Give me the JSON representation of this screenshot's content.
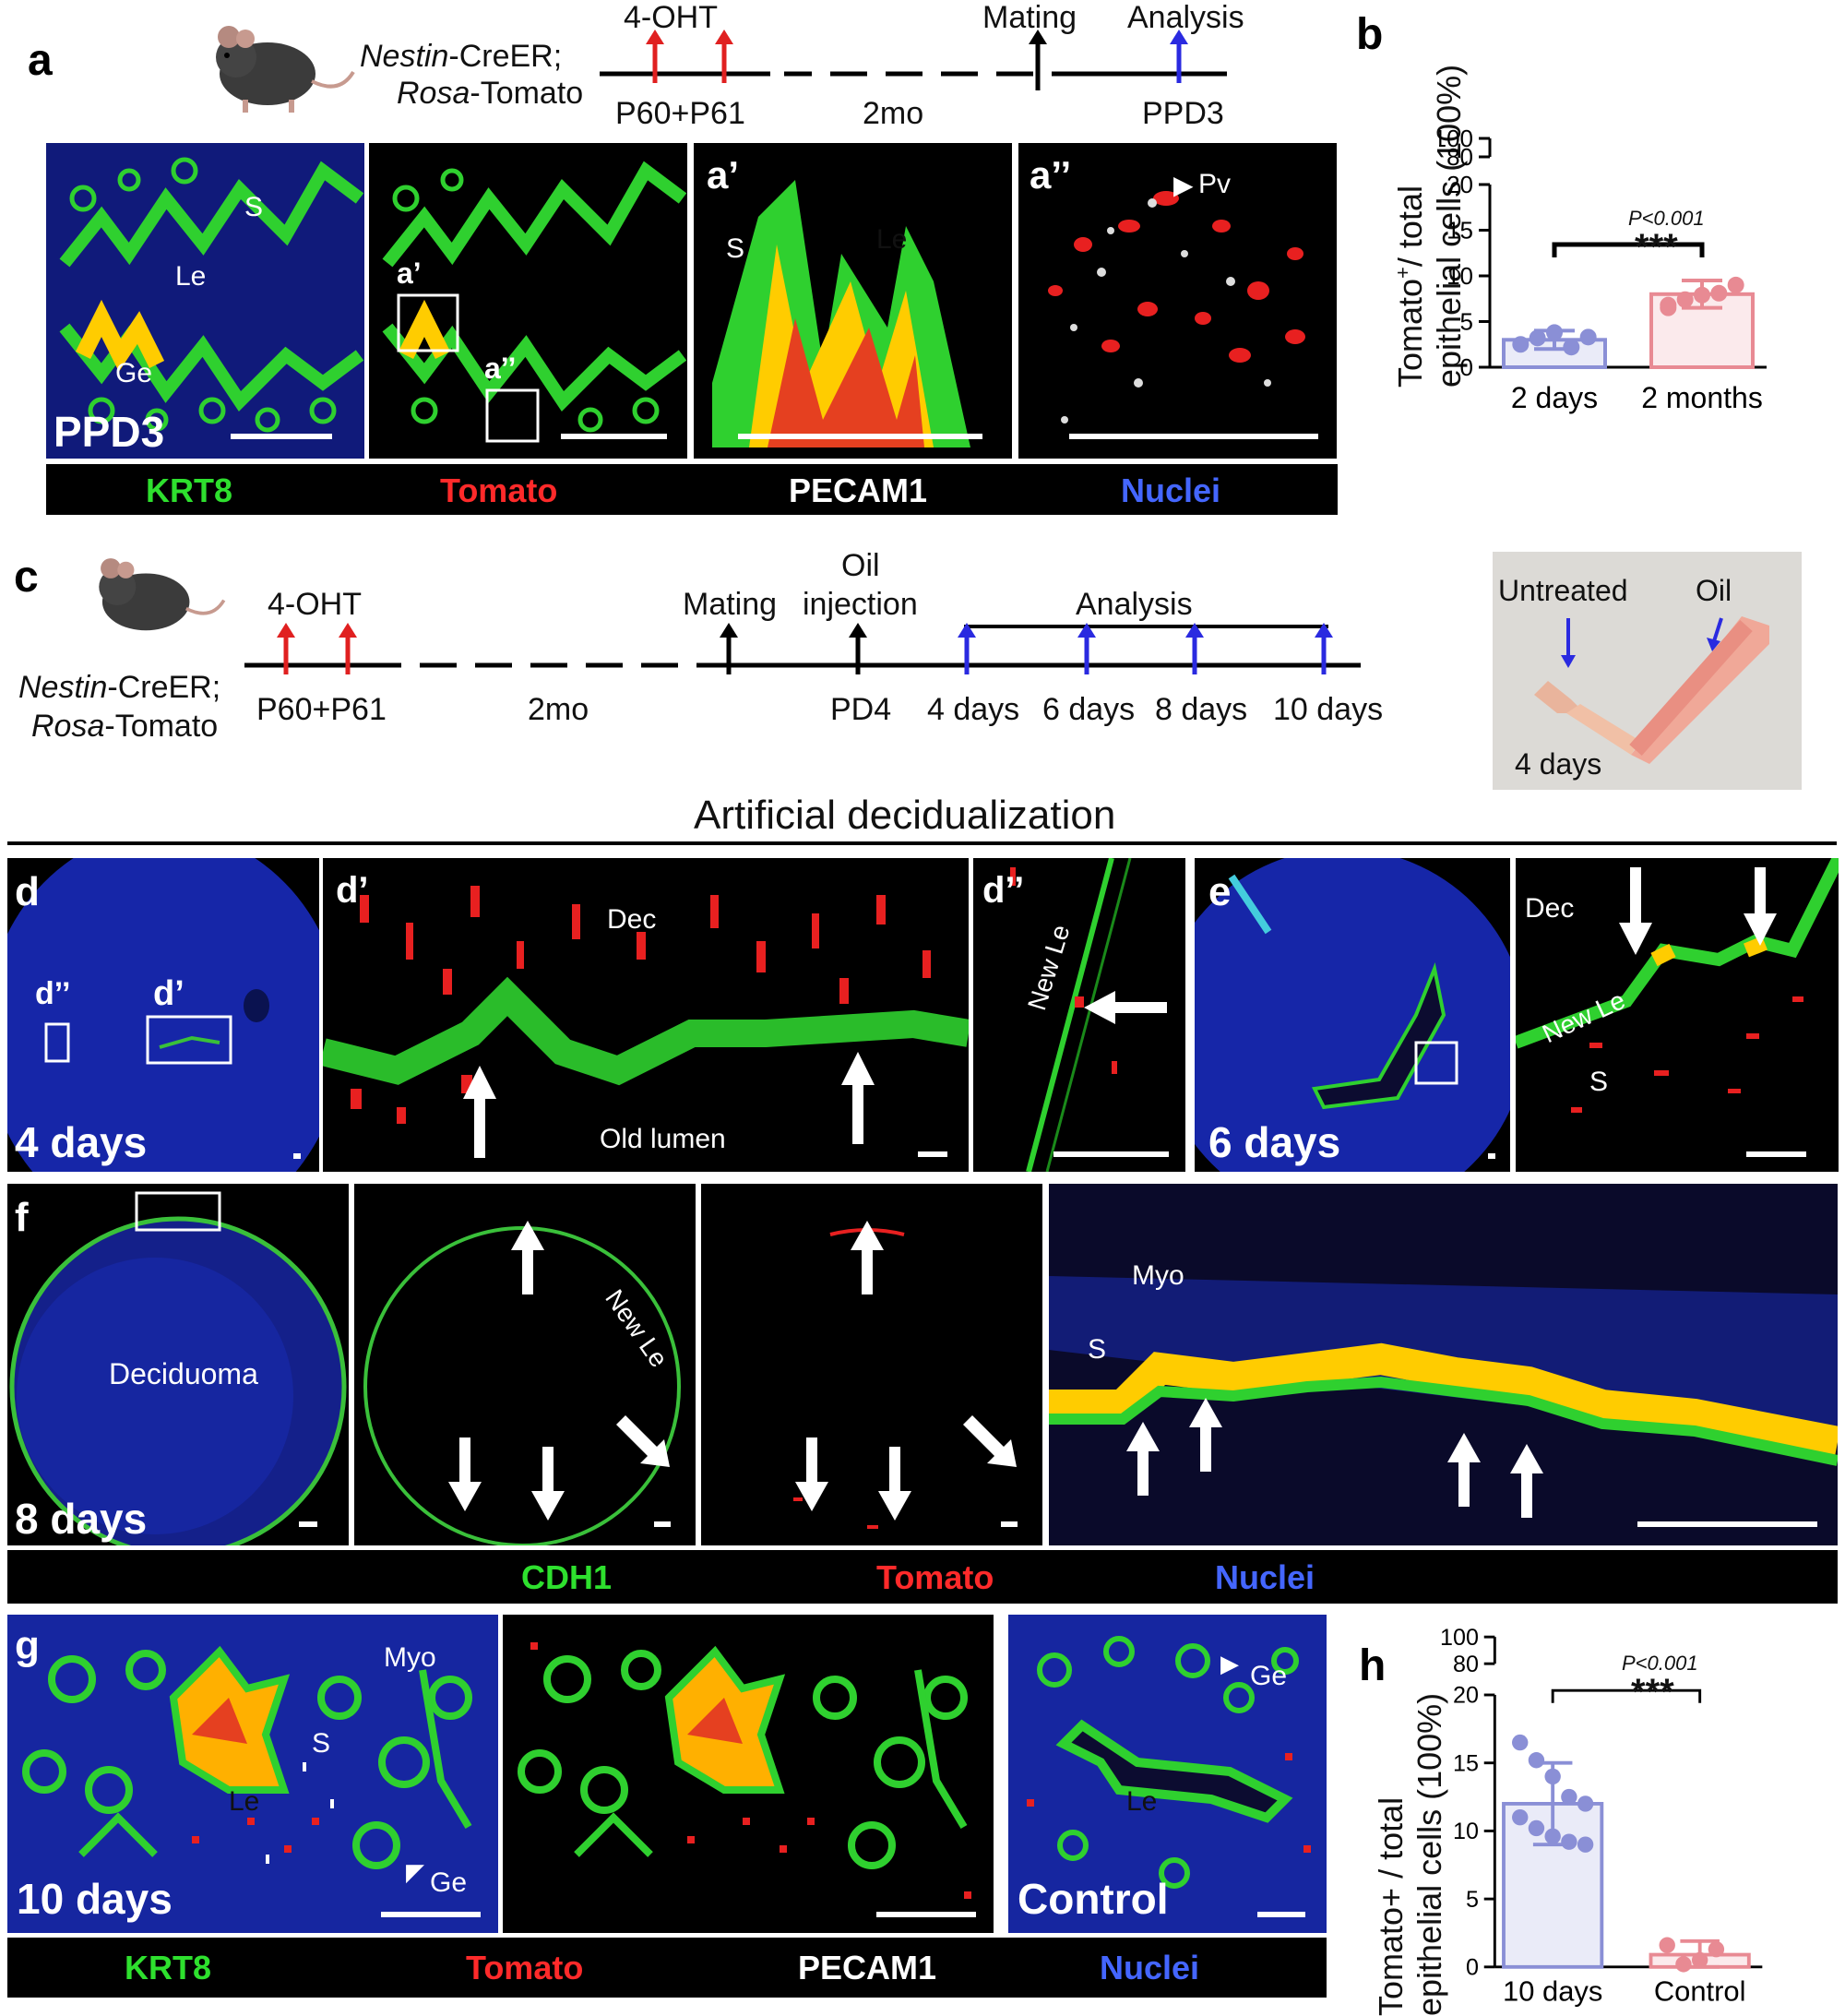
{
  "panel_a": {
    "label": "a",
    "line1": "Nestin",
    "line1b": "-CreER;",
    "line2": "Rosa",
    "line2b": "-Tomato",
    "timeline": {
      "ohf": "4-OHT",
      "mating": "Mating",
      "analysis": "Analysis",
      "p60": "P60+P61",
      "mo": "2mo",
      "ppd": "PPD3"
    },
    "img1": {
      "S": "S",
      "Le": "Le",
      "Ge": "Ge",
      "stage": "PPD3"
    },
    "img2": {
      "a1": "a’",
      "a2": "a’’"
    },
    "img3": {
      "label": "a’",
      "S": "S",
      "Le": "Le"
    },
    "img4": {
      "label": "a’’",
      "Pv": "Pv"
    },
    "legend": {
      "krt8": "KRT8",
      "tomato": "Tomato",
      "pecam": "PECAM1",
      "nuclei": "Nuclei"
    }
  },
  "panel_b": {
    "label": "b",
    "ylabel1": "Tomato",
    "ylabel_sup": "+",
    "ylabel1b": "/ total",
    "ylabel2": "epithelial cells (100%)",
    "pval": "P<0.001",
    "stars": "***"
  },
  "panel_c": {
    "label": "c",
    "line1": "Nestin",
    "line1b": "-CreER;",
    "line2": "Rosa",
    "line2b": "-Tomato",
    "timeline": {
      "ohf": "4-OHT",
      "mating": "Mating",
      "oil1": "Oil",
      "oil2": "injection",
      "analysis": "Analysis",
      "p60": "P60+P61",
      "mo": "2mo",
      "pd4": "PD4",
      "d4": "4 days",
      "d6": "6 days",
      "d8": "8 days",
      "d10": "10 days"
    },
    "photo": {
      "untreated": "Untreated",
      "oil": "Oil",
      "days": "4 days"
    }
  },
  "section_title": "Artificial decidualization",
  "panel_d": {
    "label": "d",
    "d2": "d’’",
    "d1": "d’",
    "days": "4 days",
    "dp_label": "d’",
    "dec": "Dec",
    "old": "Old lumen",
    "dpp_label": "d’’",
    "newle": "New Le"
  },
  "panel_e": {
    "label": "e",
    "days": "6 days",
    "dec": "Dec",
    "newle": "New Le",
    "S": "S"
  },
  "panel_f": {
    "label": "f",
    "decid": "Deciduoma",
    "days": "8 days",
    "newle": "New Le",
    "myo": "Myo",
    "S": "S",
    "legend": {
      "cdh1": "CDH1",
      "tomato": "Tomato",
      "nuclei": "Nuclei"
    }
  },
  "panel_g": {
    "label": "g",
    "myo": "Myo",
    "S": "S",
    "Le": "Le",
    "Ge": "Ge",
    "days": "10 days",
    "control": "Control",
    "Le2": "Le",
    "Ge2": "Ge",
    "legend": {
      "krt8": "KRT8",
      "tomato": "Tomato",
      "pecam": "PECAM1",
      "nuclei": "Nuclei"
    }
  },
  "panel_h": {
    "label": "h",
    "ylabel1": "Tomato+ / total",
    "ylabel2": "epithelial cells (100%)",
    "pval": "P<0.001",
    "stars": "***"
  },
  "chart_data": [
    {
      "type": "bar",
      "panel": "b",
      "categories": [
        "2 days",
        "2 months"
      ],
      "values": [
        3.0,
        8.0
      ],
      "errors": [
        1.0,
        1.5
      ],
      "points": [
        [
          2.5,
          3.2,
          3.8,
          2.2,
          3.3
        ],
        [
          6.5,
          7.4,
          7.9,
          8.1,
          9.0,
          6.8
        ]
      ],
      "colors": [
        "#8a8fd6",
        "#e88a93"
      ],
      "ylim_lower": [
        0,
        20
      ],
      "ylim_upper": [
        80,
        100
      ],
      "yticks": [
        0,
        5,
        10,
        15,
        20,
        80,
        100
      ]
    },
    {
      "type": "bar",
      "panel": "h",
      "categories": [
        "10 days",
        "Control"
      ],
      "values": [
        12.0,
        0.9
      ],
      "errors": [
        3.0,
        1.0
      ],
      "points": [
        [
          16.5,
          15.2,
          14.0,
          12.5,
          12.0,
          11.0,
          10.2,
          9.6,
          9.2,
          9.0
        ],
        [
          1.6,
          0.2,
          0.5,
          1.3
        ]
      ],
      "colors": [
        "#8a8fd6",
        "#e88a93"
      ],
      "ylim_lower": [
        0,
        20
      ],
      "ylim_upper": [
        80,
        100
      ],
      "yticks": [
        0,
        5,
        10,
        15,
        20,
        80,
        100
      ]
    }
  ]
}
